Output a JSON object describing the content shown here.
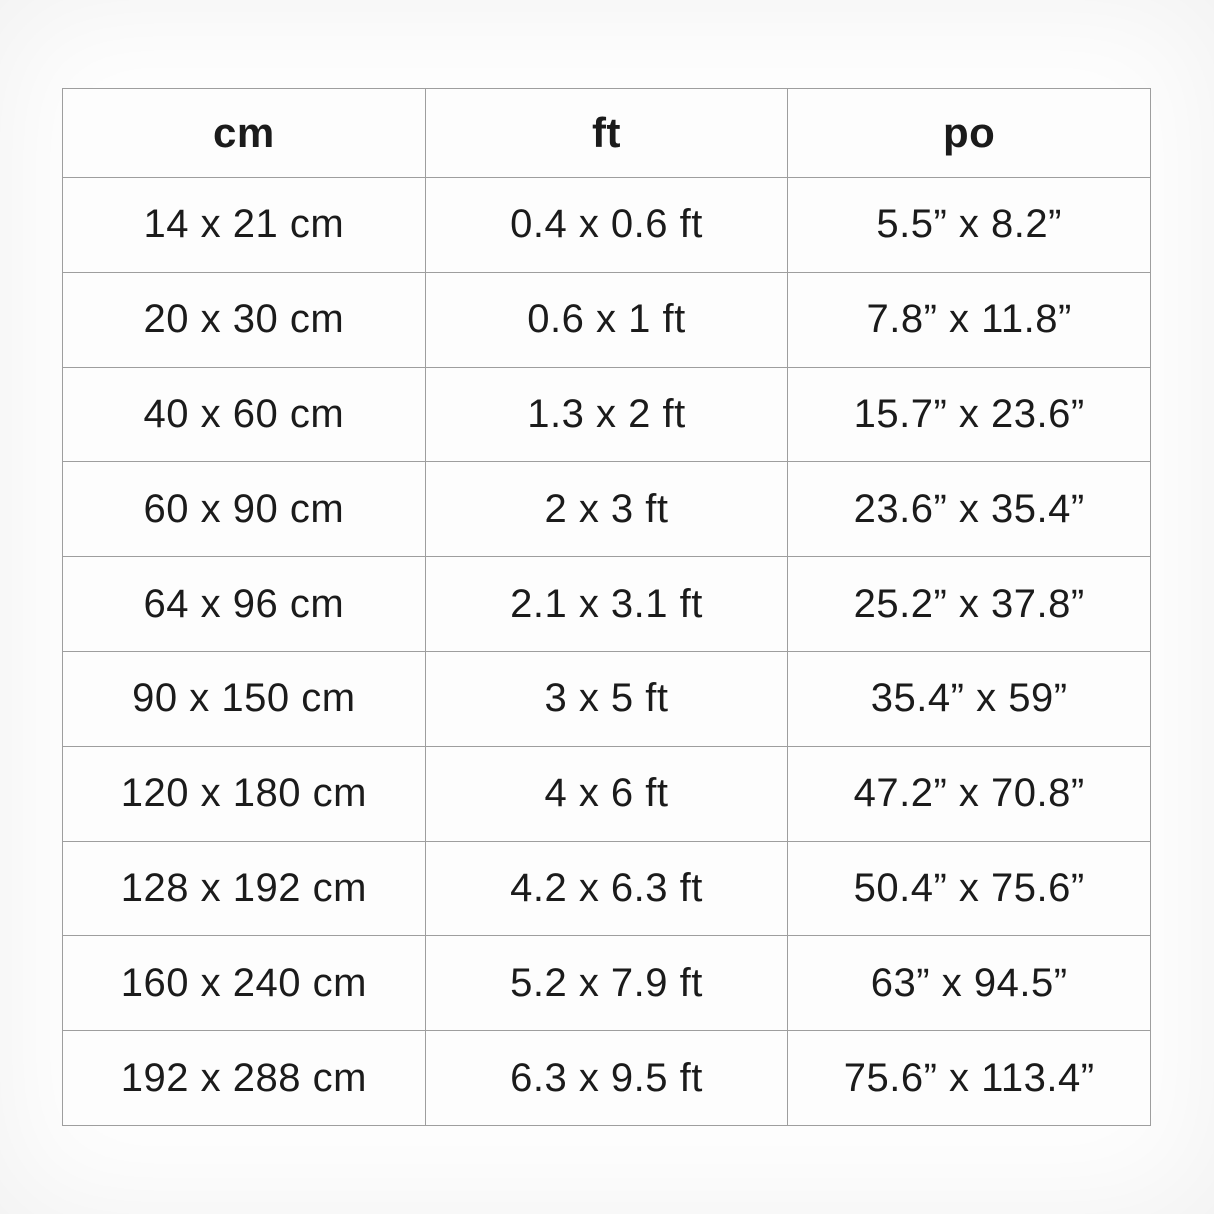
{
  "colors": {
    "page_background": "#fefefe",
    "table_background": "#fdfdfd",
    "border": "#9e9e9e",
    "text": "#1b1b1b"
  },
  "table": {
    "columns": [
      {
        "id": "cm",
        "label": "cm"
      },
      {
        "id": "ft",
        "label": "ft"
      },
      {
        "id": "po",
        "label": "po"
      }
    ],
    "rows": [
      {
        "cm": "14 x 21 cm",
        "ft": "0.4 x 0.6 ft",
        "po": "5.5” x 8.2”"
      },
      {
        "cm": "20 x 30 cm",
        "ft": "0.6 x 1 ft",
        "po": "7.8” x 11.8”"
      },
      {
        "cm": "40 x 60 cm",
        "ft": "1.3 x 2 ft",
        "po": "15.7” x 23.6”"
      },
      {
        "cm": "60 x 90 cm",
        "ft": "2 x 3 ft",
        "po": "23.6” x 35.4”"
      },
      {
        "cm": "64 x 96 cm",
        "ft": "2.1 x 3.1 ft",
        "po": "25.2” x 37.8”"
      },
      {
        "cm": "90 x 150 cm",
        "ft": "3 x 5 ft",
        "po": "35.4” x 59”"
      },
      {
        "cm": "120 x 180 cm",
        "ft": "4 x 6 ft",
        "po": "47.2” x 70.8”"
      },
      {
        "cm": "128 x 192 cm",
        "ft": "4.2 x 6.3 ft",
        "po": "50.4” x 75.6”"
      },
      {
        "cm": "160 x 240 cm",
        "ft": "5.2 x 7.9 ft",
        "po": "63” x 94.5”"
      },
      {
        "cm": "192 x 288 cm",
        "ft": "6.3 x 9.5 ft",
        "po": "75.6” x 113.4”"
      }
    ]
  }
}
